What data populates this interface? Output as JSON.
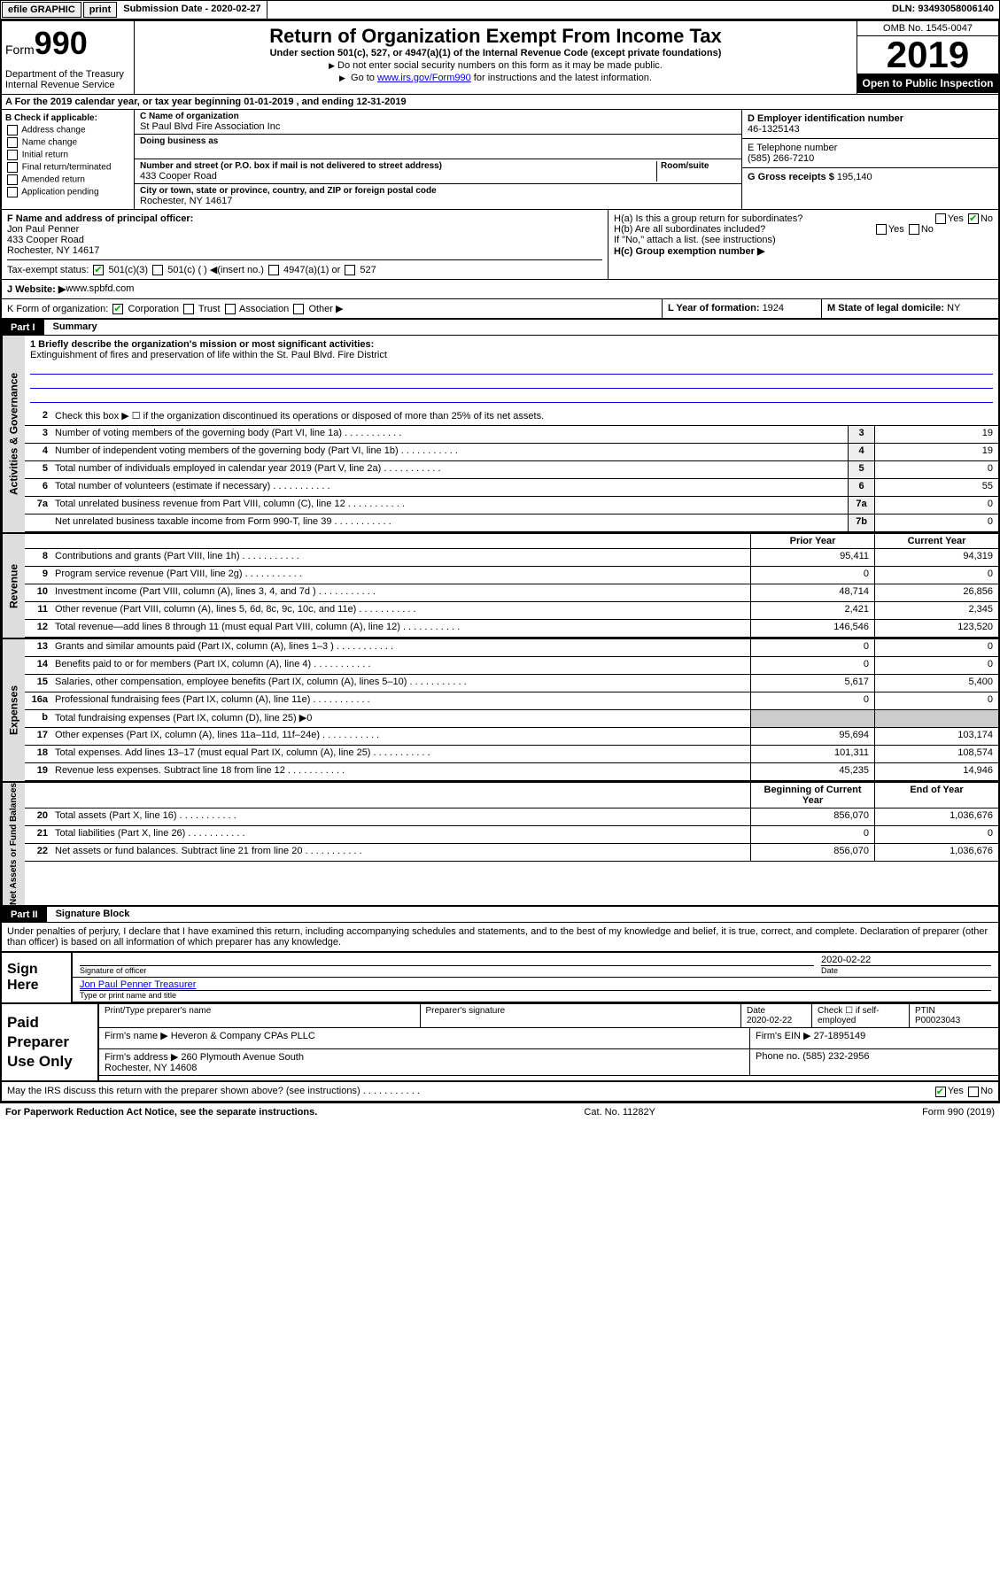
{
  "topbar": {
    "efile": "efile GRAPHIC",
    "print": "print",
    "sub_label": "Submission Date - ",
    "sub_date": "2020-02-27",
    "dln": "DLN: 93493058006140"
  },
  "header": {
    "form_word": "Form",
    "form_num": "990",
    "dept": "Department of the Treasury\nInternal Revenue Service",
    "title": "Return of Organization Exempt From Income Tax",
    "subtitle": "Under section 501(c), 527, or 4947(a)(1) of the Internal Revenue Code (except private foundations)",
    "note1": "Do not enter social security numbers on this form as it may be made public.",
    "note2_pre": "Go to ",
    "note2_link": "www.irs.gov/Form990",
    "note2_post": " for instructions and the latest information.",
    "omb": "OMB No. 1545-0047",
    "year": "2019",
    "open": "Open to Public Inspection"
  },
  "rowA": "A For the 2019 calendar year, or tax year beginning 01-01-2019   , and ending 12-31-2019",
  "colB": {
    "title": "B Check if applicable:",
    "opts": [
      "Address change",
      "Name change",
      "Initial return",
      "Final return/terminated",
      "Amended return",
      "Application pending"
    ]
  },
  "colC": {
    "name_lbl": "C Name of organization",
    "name": "St Paul Blvd Fire Association Inc",
    "dba_lbl": "Doing business as",
    "dba": "",
    "addr_lbl": "Number and street (or P.O. box if mail is not delivered to street address)",
    "room_lbl": "Room/suite",
    "addr": "433 Cooper Road",
    "city_lbl": "City or town, state or province, country, and ZIP or foreign postal code",
    "city": "Rochester, NY  14617"
  },
  "colRight": {
    "d_lbl": "D Employer identification number",
    "d_val": "46-1325143",
    "e_lbl": "E Telephone number",
    "e_val": "(585) 266-7210",
    "g_lbl": "G Gross receipts $ ",
    "g_val": "195,140"
  },
  "rowF": {
    "f_lbl": "F  Name and address of principal officer:",
    "f_val": "Jon Paul Penner\n433 Cooper Road\nRochester, NY  14617",
    "ha": "H(a)  Is this a group return for subordinates?",
    "hb": "H(b)  Are all subordinates included?",
    "hb_note": "If \"No,\" attach a list. (see instructions)",
    "hc": "H(c)  Group exemption number ▶",
    "yes": "Yes",
    "no": "No"
  },
  "taxStatus": {
    "lbl": "Tax-exempt status:",
    "c3": "501(c)(3)",
    "c": "501(c) (  ) ◀(insert no.)",
    "a1": "4947(a)(1) or",
    "s527": "527"
  },
  "rowJ": {
    "lbl": "J  Website: ▶",
    "val": " www.spbfd.com"
  },
  "rowK": {
    "k_lbl": "K Form of organization:",
    "corp": "Corporation",
    "trust": "Trust",
    "assoc": "Association",
    "other": "Other ▶",
    "l_lbl": "L Year of formation: ",
    "l_val": "1924",
    "m_lbl": "M State of legal domicile: ",
    "m_val": "NY"
  },
  "part1": {
    "num": "Part I",
    "title": "Summary"
  },
  "governance": {
    "label": "Activities & Governance",
    "l1_lbl": "1  Briefly describe the organization's mission or most significant activities:",
    "l1_val": "Extinguishment of fires and preservation of life within the St. Paul Blvd. Fire District",
    "l2": "Check this box ▶ ☐  if the organization discontinued its operations or disposed of more than 25% of its net assets.",
    "lines": [
      {
        "n": "3",
        "d": "Number of voting members of the governing body (Part VI, line 1a)",
        "b": "3",
        "v": "19"
      },
      {
        "n": "4",
        "d": "Number of independent voting members of the governing body (Part VI, line 1b)",
        "b": "4",
        "v": "19"
      },
      {
        "n": "5",
        "d": "Total number of individuals employed in calendar year 2019 (Part V, line 2a)",
        "b": "5",
        "v": "0"
      },
      {
        "n": "6",
        "d": "Total number of volunteers (estimate if necessary)",
        "b": "6",
        "v": "55"
      },
      {
        "n": "7a",
        "d": "Total unrelated business revenue from Part VIII, column (C), line 12",
        "b": "7a",
        "v": "0"
      },
      {
        "n": "",
        "d": "Net unrelated business taxable income from Form 990-T, line 39",
        "b": "7b",
        "v": "0"
      }
    ]
  },
  "revenue": {
    "label": "Revenue",
    "hdr_prior": "Prior Year",
    "hdr_curr": "Current Year",
    "lines": [
      {
        "n": "8",
        "d": "Contributions and grants (Part VIII, line 1h)",
        "p": "95,411",
        "c": "94,319"
      },
      {
        "n": "9",
        "d": "Program service revenue (Part VIII, line 2g)",
        "p": "0",
        "c": "0"
      },
      {
        "n": "10",
        "d": "Investment income (Part VIII, column (A), lines 3, 4, and 7d )",
        "p": "48,714",
        "c": "26,856"
      },
      {
        "n": "11",
        "d": "Other revenue (Part VIII, column (A), lines 5, 6d, 8c, 9c, 10c, and 11e)",
        "p": "2,421",
        "c": "2,345"
      },
      {
        "n": "12",
        "d": "Total revenue—add lines 8 through 11 (must equal Part VIII, column (A), line 12)",
        "p": "146,546",
        "c": "123,520"
      }
    ]
  },
  "expenses": {
    "label": "Expenses",
    "lines": [
      {
        "n": "13",
        "d": "Grants and similar amounts paid (Part IX, column (A), lines 1–3 )",
        "p": "0",
        "c": "0"
      },
      {
        "n": "14",
        "d": "Benefits paid to or for members (Part IX, column (A), line 4)",
        "p": "0",
        "c": "0"
      },
      {
        "n": "15",
        "d": "Salaries, other compensation, employee benefits (Part IX, column (A), lines 5–10)",
        "p": "5,617",
        "c": "5,400"
      },
      {
        "n": "16a",
        "d": "Professional fundraising fees (Part IX, column (A), line 11e)",
        "p": "0",
        "c": "0"
      },
      {
        "n": "b",
        "d": "Total fundraising expenses (Part IX, column (D), line 25) ▶0",
        "p": "",
        "c": ""
      },
      {
        "n": "17",
        "d": "Other expenses (Part IX, column (A), lines 11a–11d, 11f–24e)",
        "p": "95,694",
        "c": "103,174"
      },
      {
        "n": "18",
        "d": "Total expenses. Add lines 13–17 (must equal Part IX, column (A), line 25)",
        "p": "101,311",
        "c": "108,574"
      },
      {
        "n": "19",
        "d": "Revenue less expenses. Subtract line 18 from line 12",
        "p": "45,235",
        "c": "14,946"
      }
    ]
  },
  "netassets": {
    "label": "Net Assets or Fund Balances",
    "hdr_beg": "Beginning of Current Year",
    "hdr_end": "End of Year",
    "lines": [
      {
        "n": "20",
        "d": "Total assets (Part X, line 16)",
        "p": "856,070",
        "c": "1,036,676"
      },
      {
        "n": "21",
        "d": "Total liabilities (Part X, line 26)",
        "p": "0",
        "c": "0"
      },
      {
        "n": "22",
        "d": "Net assets or fund balances. Subtract line 21 from line 20",
        "p": "856,070",
        "c": "1,036,676"
      }
    ]
  },
  "part2": {
    "num": "Part II",
    "title": "Signature Block"
  },
  "perjury": "Under penalties of perjury, I declare that I have examined this return, including accompanying schedules and statements, and to the best of my knowledge and belief, it is true, correct, and complete. Declaration of preparer (other than officer) is based on all information of which preparer has any knowledge.",
  "sign": {
    "here": "Sign Here",
    "sig_lbl": "Signature of officer",
    "date": "2020-02-22",
    "date_lbl": "Date",
    "name": "Jon Paul Penner  Treasurer",
    "name_lbl": "Type or print name and title"
  },
  "paid": {
    "title": "Paid Preparer Use Only",
    "h1": "Print/Type preparer's name",
    "h2": "Preparer's signature",
    "h3": "Date",
    "h4": "Check ☐ if self-employed",
    "h5": "PTIN",
    "date": "2020-02-22",
    "ptin": "P00023043",
    "firm_lbl": "Firm's name    ▶ ",
    "firm": "Heveron & Company CPAs PLLC",
    "ein_lbl": "Firm's EIN ▶ ",
    "ein": "27-1895149",
    "addr_lbl": "Firm's address ▶ ",
    "addr": "260 Plymouth Avenue South\nRochester, NY  14608",
    "phone_lbl": "Phone no. ",
    "phone": "(585) 232-2956"
  },
  "discuss": {
    "q": "May the IRS discuss this return with the preparer shown above? (see instructions)",
    "yes": "Yes",
    "no": "No"
  },
  "footer": {
    "left": "For Paperwork Reduction Act Notice, see the separate instructions.",
    "mid": "Cat. No. 11282Y",
    "right": "Form 990 (2019)"
  }
}
